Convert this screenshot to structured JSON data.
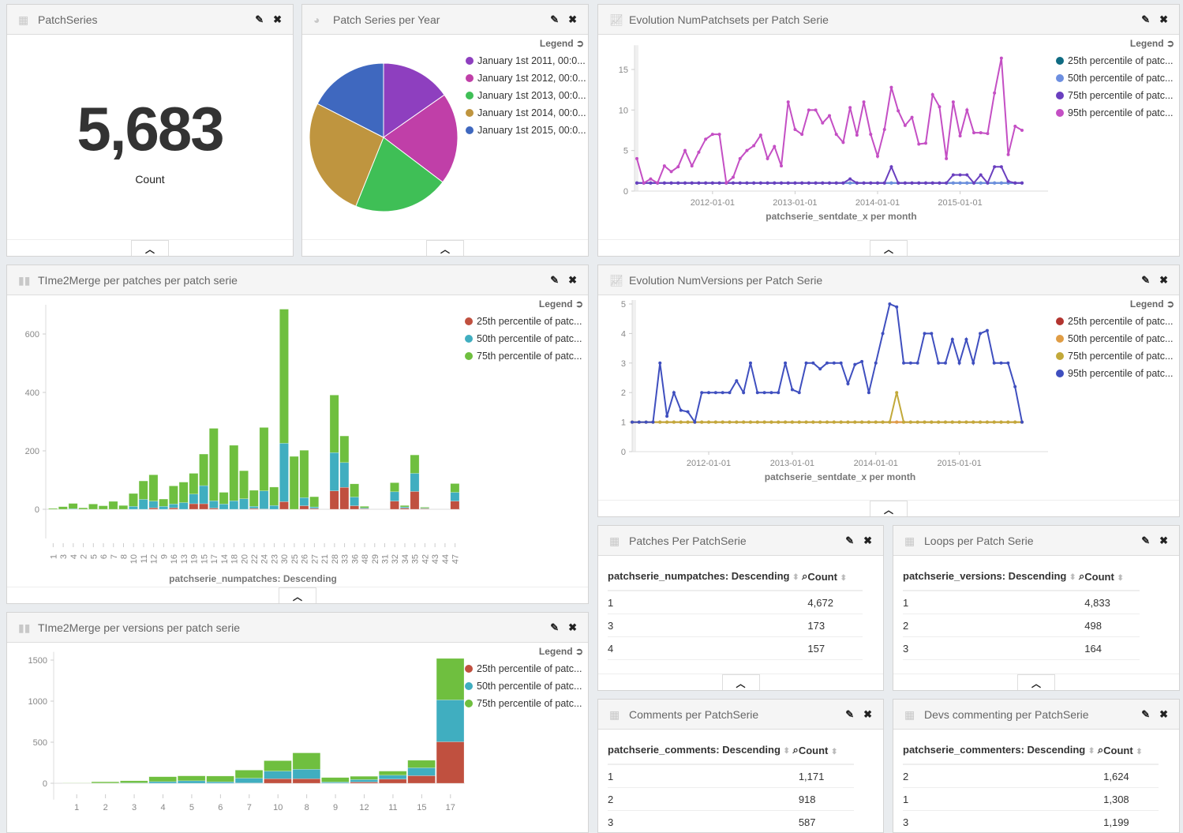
{
  "panels": {
    "patchseries": {
      "title": "PatchSeries",
      "value": "5,683",
      "label": "Count"
    },
    "pie": {
      "title": "Patch Series per Year"
    },
    "numpatchsets": {
      "title": "Evolution NumPatchsets per Patch Serie"
    },
    "t2m_patches": {
      "title": "TIme2Merge per patches per patch serie"
    },
    "numversions": {
      "title": "Evolution NumVersions per Patch Serie"
    },
    "t2m_versions": {
      "title": "TIme2Merge per versions per patch serie"
    },
    "patches_per": {
      "title": "Patches Per PatchSerie",
      "col1": "patchserie_numpatches: Descending",
      "col2": "Count",
      "rows": [
        [
          "1",
          "4,672"
        ],
        [
          "3",
          "173"
        ],
        [
          "4",
          "157"
        ]
      ]
    },
    "loops": {
      "title": "Loops per Patch Serie",
      "col1": "patchserie_versions: Descending",
      "col2": "Count",
      "rows": [
        [
          "1",
          "4,833"
        ],
        [
          "2",
          "498"
        ],
        [
          "3",
          "164"
        ]
      ]
    },
    "comments": {
      "title": "Comments per PatchSerie",
      "col1": "patchserie_comments: Descending",
      "col2": "Count",
      "rows": [
        [
          "1",
          "1,171"
        ],
        [
          "2",
          "918"
        ],
        [
          "3",
          "587"
        ]
      ]
    },
    "devs": {
      "title": "Devs commenting per PatchSerie",
      "col1": "patchserie_commenters: Descending",
      "col2": "Count",
      "rows": [
        [
          "2",
          "1,624"
        ],
        [
          "1",
          "1,308"
        ],
        [
          "3",
          "1,199"
        ]
      ]
    }
  },
  "legend_label": "Legend",
  "icons": {
    "edit": "pencil-icon",
    "close": "close-icon",
    "collapse": "chevron-up-icon",
    "table": "table-icon",
    "pie": "pie-chart-icon",
    "line": "line-chart-icon",
    "bar": "bar-chart-icon",
    "sort": "sort-icon",
    "filter": "magnifier-icon",
    "legend_toggle": "circle-arrow-icon"
  },
  "chart_data": [
    {
      "type": "pie",
      "categories": [
        "January 1st 2011, 00:0...",
        "January 1st 2012, 00:0...",
        "January 1st 2013, 00:0...",
        "January 1st 2014, 00:0...",
        "January 1st 2015, 00:0..."
      ],
      "values": [
        15.3,
        20,
        20.8,
        26.4,
        17.5
      ],
      "colors": [
        "#8e3fbf",
        "#c03fa8",
        "#3fbf56",
        "#bf953f",
        "#3f68bf"
      ]
    },
    {
      "type": "line",
      "xlabel": "patchserie_sentdate_x per month",
      "ylim": [
        0,
        17.5
      ],
      "yticks": [
        0,
        5,
        10,
        15
      ],
      "xticks": [
        "2012-01-01",
        "2013-01-01",
        "2014-01-01",
        "2015-01-01"
      ],
      "x": [
        "2011-02",
        "2011-03",
        "2011-04",
        "2011-05",
        "2011-06",
        "2011-07",
        "2011-08",
        "2011-09",
        "2011-10",
        "2011-11",
        "2011-12",
        "2012-01",
        "2012-02",
        "2012-03",
        "2012-04",
        "2012-05",
        "2012-06",
        "2012-07",
        "2012-08",
        "2012-09",
        "2012-10",
        "2012-11",
        "2012-12",
        "2013-01",
        "2013-02",
        "2013-03",
        "2013-04",
        "2013-05",
        "2013-06",
        "2013-07",
        "2013-08",
        "2013-09",
        "2013-10",
        "2013-11",
        "2013-12",
        "2014-01",
        "2014-02",
        "2014-03",
        "2014-04",
        "2014-05",
        "2014-06",
        "2014-07",
        "2014-08",
        "2014-09",
        "2014-10",
        "2014-11",
        "2014-12",
        "2015-01",
        "2015-02",
        "2015-03",
        "2015-04",
        "2015-05",
        "2015-06",
        "2015-07",
        "2015-08",
        "2015-09",
        "2015-10"
      ],
      "series": [
        {
          "name": "25th percentile of patc...",
          "color": "#0f6b82",
          "values": [
            1,
            1,
            1,
            1,
            1,
            1,
            1,
            1,
            1,
            1,
            1,
            1,
            1,
            1,
            1,
            1,
            1,
            1,
            1,
            1,
            1,
            1,
            1,
            1,
            1,
            1,
            1,
            1,
            1,
            1,
            1,
            1,
            1,
            1,
            1,
            1,
            1,
            1,
            1,
            1,
            1,
            1,
            1,
            1,
            1,
            1,
            1,
            1,
            1,
            1,
            1,
            1,
            1,
            1,
            1,
            1,
            1
          ]
        },
        {
          "name": "50th percentile of patc...",
          "color": "#6d8fe0",
          "values": [
            1,
            1,
            1,
            1,
            1,
            1,
            1,
            1,
            1,
            1,
            1,
            1,
            1,
            1,
            1,
            1,
            1,
            1,
            1,
            1,
            1,
            1,
            1,
            1,
            1,
            1,
            1,
            1,
            1,
            1,
            1,
            1,
            1,
            1,
            1,
            1,
            1,
            1,
            1,
            1,
            1,
            1,
            1,
            1,
            1,
            1,
            1,
            1,
            1,
            1,
            1,
            1,
            1,
            1,
            1,
            1,
            1
          ]
        },
        {
          "name": "75th percentile of patc...",
          "color": "#6a3fbf",
          "values": [
            1,
            1,
            1,
            1,
            1,
            1,
            1,
            1,
            1,
            1,
            1,
            1,
            1,
            1,
            1,
            1,
            1,
            1,
            1,
            1,
            1,
            1,
            1,
            1,
            1,
            1,
            1,
            1,
            1,
            1,
            1,
            1.5,
            1,
            1,
            1,
            1,
            1,
            3,
            1,
            1,
            1,
            1,
            1,
            1,
            1,
            1,
            2,
            2,
            2,
            1,
            2,
            1,
            3,
            3,
            1.2,
            1,
            1
          ]
        },
        {
          "name": "95th percentile of patc...",
          "color": "#c44fc4",
          "values": [
            4,
            1,
            1.5,
            1,
            3.1,
            2.4,
            3,
            5,
            3.1,
            4.8,
            6.4,
            7,
            7,
            1,
            1.7,
            4,
            5,
            5.6,
            6.9,
            4,
            5.5,
            3.1,
            11,
            7.6,
            7,
            10,
            10,
            8.4,
            9.3,
            7,
            6,
            10.3,
            6.9,
            11,
            7,
            4.3,
            7.6,
            12.8,
            9.9,
            8.1,
            9.1,
            5.8,
            5.9,
            11.9,
            10.4,
            4,
            11,
            6.8,
            10,
            7.2,
            7.2,
            7.1,
            12.1,
            16.4,
            4.5,
            8,
            7.5
          ]
        }
      ]
    },
    {
      "type": "bar",
      "stacked": true,
      "xlabel": "patchserie_numpatches: Descending",
      "ylim": [
        -100,
        700
      ],
      "yticks": [
        0,
        200,
        400,
        600
      ],
      "categories": [
        "1",
        "3",
        "4",
        "2",
        "5",
        "6",
        "7",
        "8",
        "10",
        "11",
        "12",
        "9",
        "16",
        "13",
        "19",
        "15",
        "17",
        "14",
        "18",
        "20",
        "22",
        "24",
        "23",
        "30",
        "25",
        "26",
        "27",
        "21",
        "28",
        "33",
        "36",
        "48",
        "29",
        "31",
        "32",
        "34",
        "35",
        "42",
        "43",
        "44",
        "47"
      ],
      "series": [
        {
          "name": "25th percentile of patc...",
          "color": "#c0503f",
          "values": [
            0,
            0,
            0,
            0,
            0,
            0,
            0,
            0,
            0,
            0,
            5,
            0,
            5,
            0,
            19,
            19,
            4,
            0,
            0,
            0,
            3,
            1,
            0,
            26,
            0,
            12,
            3,
            0,
            63,
            75,
            12,
            2,
            0,
            0,
            28,
            4,
            61,
            2,
            0,
            0,
            28
          ]
        },
        {
          "name": "50th percentile of patc...",
          "color": "#40aec0",
          "values": [
            0,
            0,
            2,
            0,
            0,
            0,
            0,
            0,
            10,
            34,
            23,
            10,
            13,
            23,
            33,
            62,
            25,
            18,
            29,
            36,
            7,
            62,
            13,
            200,
            0,
            28,
            5,
            0,
            131,
            85,
            30,
            3,
            0,
            0,
            32,
            4,
            62,
            2,
            0,
            0,
            30
          ]
        },
        {
          "name": "75th percentile of patc...",
          "color": "#6fbf3f",
          "values": [
            3,
            9,
            18,
            5,
            18,
            12,
            27,
            13,
            44,
            63,
            90,
            25,
            62,
            70,
            71,
            108,
            248,
            40,
            190,
            96,
            55,
            217,
            63,
            459,
            181,
            162,
            35,
            0,
            197,
            91,
            45,
            5,
            0,
            0,
            31,
            5,
            63,
            3,
            0,
            0,
            30
          ]
        }
      ]
    },
    {
      "type": "line",
      "xlabel": "patchserie_sentdate_x per month",
      "ylim": [
        0,
        5
      ],
      "yticks": [
        0,
        1,
        2,
        3,
        4,
        5
      ],
      "xticks": [
        "2012-01-01",
        "2013-01-01",
        "2014-01-01",
        "2015-01-01"
      ],
      "x": [
        "2011-02",
        "2011-03",
        "2011-04",
        "2011-05",
        "2011-06",
        "2011-07",
        "2011-08",
        "2011-09",
        "2011-10",
        "2011-11",
        "2011-12",
        "2012-01",
        "2012-02",
        "2012-03",
        "2012-04",
        "2012-05",
        "2012-06",
        "2012-07",
        "2012-08",
        "2012-09",
        "2012-10",
        "2012-11",
        "2012-12",
        "2013-01",
        "2013-02",
        "2013-03",
        "2013-04",
        "2013-05",
        "2013-06",
        "2013-07",
        "2013-08",
        "2013-09",
        "2013-10",
        "2013-11",
        "2013-12",
        "2014-01",
        "2014-02",
        "2014-03",
        "2014-04",
        "2014-05",
        "2014-06",
        "2014-07",
        "2014-08",
        "2014-09",
        "2014-10",
        "2014-11",
        "2014-12",
        "2015-01",
        "2015-02",
        "2015-03",
        "2015-04",
        "2015-05",
        "2015-06",
        "2015-07",
        "2015-08",
        "2015-09",
        "2015-10"
      ],
      "series": [
        {
          "name": "25th percentile of patc...",
          "color": "#b2342f",
          "values": [
            1,
            1,
            1,
            1,
            1,
            1,
            1,
            1,
            1,
            1,
            1,
            1,
            1,
            1,
            1,
            1,
            1,
            1,
            1,
            1,
            1,
            1,
            1,
            1,
            1,
            1,
            1,
            1,
            1,
            1,
            1,
            1,
            1,
            1,
            1,
            1,
            1,
            1,
            1,
            1,
            1,
            1,
            1,
            1,
            1,
            1,
            1,
            1,
            1,
            1,
            1,
            1,
            1,
            1,
            1,
            1,
            1
          ]
        },
        {
          "name": "50th percentile of patc...",
          "color": "#e09d45",
          "values": [
            1,
            1,
            1,
            1,
            1,
            1,
            1,
            1,
            1,
            1,
            1,
            1,
            1,
            1,
            1,
            1,
            1,
            1,
            1,
            1,
            1,
            1,
            1,
            1,
            1,
            1,
            1,
            1,
            1,
            1,
            1,
            1,
            1,
            1,
            1,
            1,
            1,
            1,
            1,
            1,
            1,
            1,
            1,
            1,
            1,
            1,
            1,
            1,
            1,
            1,
            1,
            1,
            1,
            1,
            1,
            1,
            1
          ]
        },
        {
          "name": "75th percentile of patc...",
          "color": "#c2a93a",
          "values": [
            1,
            1,
            1,
            1,
            1,
            1,
            1,
            1,
            1,
            1,
            1,
            1,
            1,
            1,
            1,
            1,
            1,
            1,
            1,
            1,
            1,
            1,
            1,
            1,
            1,
            1,
            1,
            1,
            1,
            1,
            1,
            1,
            1,
            1,
            1,
            1,
            1,
            1,
            2,
            1,
            1,
            1,
            1,
            1,
            1,
            1,
            1,
            1,
            1,
            1,
            1,
            1,
            1,
            1,
            1,
            1,
            1
          ]
        },
        {
          "name": "95th percentile of patc...",
          "color": "#3f4fbf",
          "values": [
            1,
            1,
            1,
            1,
            3,
            1.2,
            2,
            1.4,
            1.35,
            1,
            2,
            2,
            2,
            2,
            2,
            2.4,
            2,
            3,
            2,
            2,
            2,
            2,
            3,
            2.1,
            2,
            3,
            3,
            2.8,
            3,
            3,
            3,
            2.3,
            2.95,
            3.05,
            2,
            3,
            4,
            5,
            4.9,
            3,
            3,
            3,
            4,
            4,
            3,
            3,
            3.8,
            3,
            3.8,
            3,
            4,
            4.1,
            3,
            3,
            3,
            2.2,
            1
          ]
        }
      ]
    },
    {
      "type": "bar",
      "stacked": true,
      "xlabel": "",
      "ylim": [
        -200,
        1600
      ],
      "yticks": [
        0,
        500,
        1000,
        1500
      ],
      "categories": [
        "1",
        "2",
        "3",
        "4",
        "5",
        "6",
        "7",
        "10",
        "8",
        "9",
        "12",
        "11",
        "15",
        "17"
      ],
      "series": [
        {
          "name": "25th percentile of patc...",
          "color": "#c0503f",
          "values": [
            0,
            0,
            0,
            0,
            0,
            0,
            3,
            55,
            55,
            2,
            15,
            50,
            92,
            505
          ]
        },
        {
          "name": "50th percentile of patc...",
          "color": "#40aec0",
          "values": [
            0,
            2,
            5,
            20,
            30,
            18,
            59,
            93,
            115,
            13,
            30,
            48,
            96,
            510
          ]
        },
        {
          "name": "75th percentile of patc...",
          "color": "#6fbf3f",
          "values": [
            3,
            16,
            25,
            60,
            60,
            70,
            98,
            127,
            200,
            55,
            40,
            50,
            92,
            505
          ]
        }
      ]
    }
  ]
}
